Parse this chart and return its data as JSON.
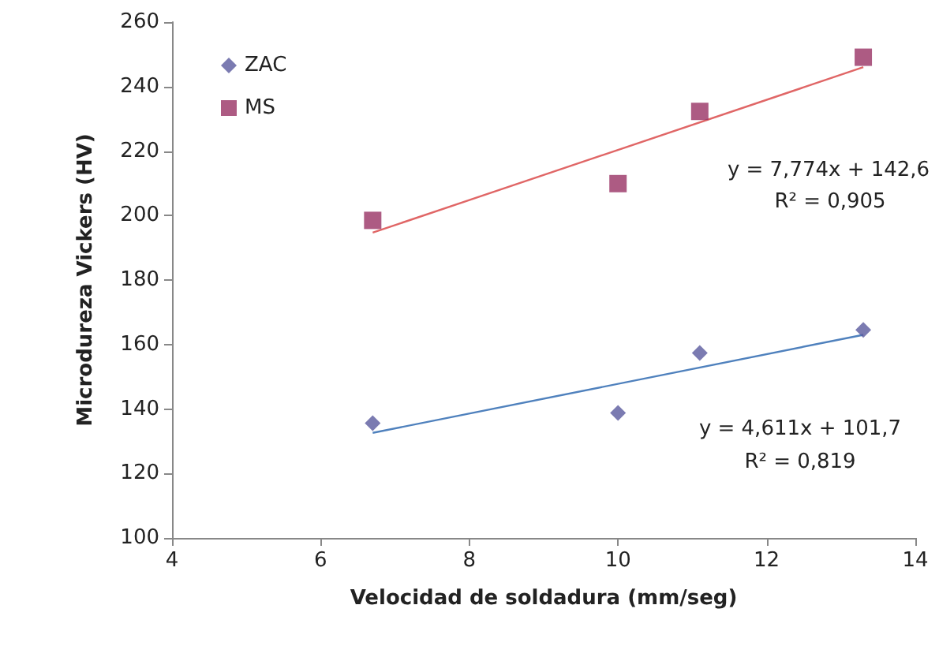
{
  "chart_data": {
    "type": "scatter",
    "xlabel": "Velocidad de soldadura (mm/seg)",
    "ylabel": "Microdureza Vickers (HV)",
    "xlim": [
      4,
      14
    ],
    "xticks": [
      4,
      6,
      8,
      10,
      12,
      14
    ],
    "ylim": [
      100,
      260
    ],
    "yticks": [
      100,
      120,
      140,
      160,
      180,
      200,
      220,
      240,
      260
    ],
    "grid": false,
    "legend": "top left",
    "series": [
      {
        "name": "ZAC",
        "color": "#5a5a9e",
        "marker": "diamond",
        "x": [
          6.7,
          10,
          11.1,
          13.3
        ],
        "values": [
          135.6,
          138.8,
          157.4,
          164.5
        ]
      },
      {
        "name": "MS",
        "color": "#983264",
        "marker": "square",
        "x": [
          6.7,
          10,
          11.1,
          13.3
        ],
        "values": [
          198.5,
          209.9,
          232.3,
          249.1
        ]
      },
      {
        "type": "line",
        "color": "#4f81bd",
        "marker": "none",
        "x": [
          6.7,
          13.3
        ],
        "values": [
          132.6,
          163.0
        ]
      },
      {
        "type": "line",
        "color": "#e06666",
        "marker": "none",
        "x": [
          6.7,
          13.3
        ],
        "values": [
          194.7,
          246.0
        ]
      }
    ],
    "annotations": [
      "y = 7,774x + 142,6",
      "R² = 0,905",
      "y = 4,611x + 101,7",
      "R² = 0,819"
    ]
  }
}
